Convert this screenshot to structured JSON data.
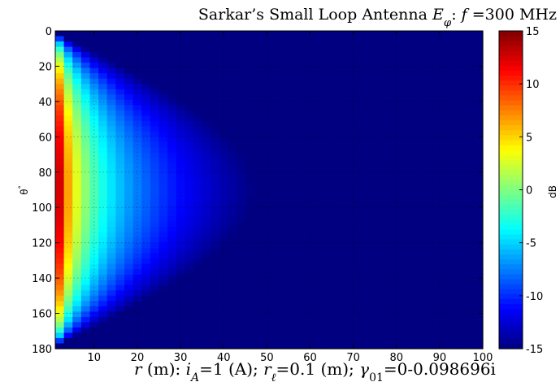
{
  "chart_data": {
    "type": "heatmap",
    "title": "Sarkar’s Small Loop Antenna Eφ: f =300 MHz",
    "xlabel": "r (m): iA=1 (A); rℓ=0.1 (m); γ01=0-0.098696i",
    "ylabel": "θ°",
    "colorbar_label": "dB",
    "x_range": [
      1,
      100
    ],
    "y_range": [
      0,
      180
    ],
    "y_reversed": true,
    "x_ticks": [
      "10",
      "20",
      "30",
      "40",
      "50",
      "60",
      "70",
      "80",
      "90",
      "100"
    ],
    "y_ticks": [
      "0",
      "20",
      "40",
      "60",
      "80",
      "100",
      "120",
      "140",
      "160",
      "180"
    ],
    "colorbar_range": [
      -15,
      15
    ],
    "colorbar_ticks": [
      "15",
      "10",
      "5",
      "0",
      "-5",
      "-10",
      "-15"
    ],
    "colormap": "jet",
    "grid": "dotted",
    "model": "value_dB = 20*log10(sin(theta)) - 20*log10(r) + 18.5, clipped to [-15, 15]",
    "grid_resolution": {
      "r_step": 2,
      "theta_step": 3
    }
  }
}
